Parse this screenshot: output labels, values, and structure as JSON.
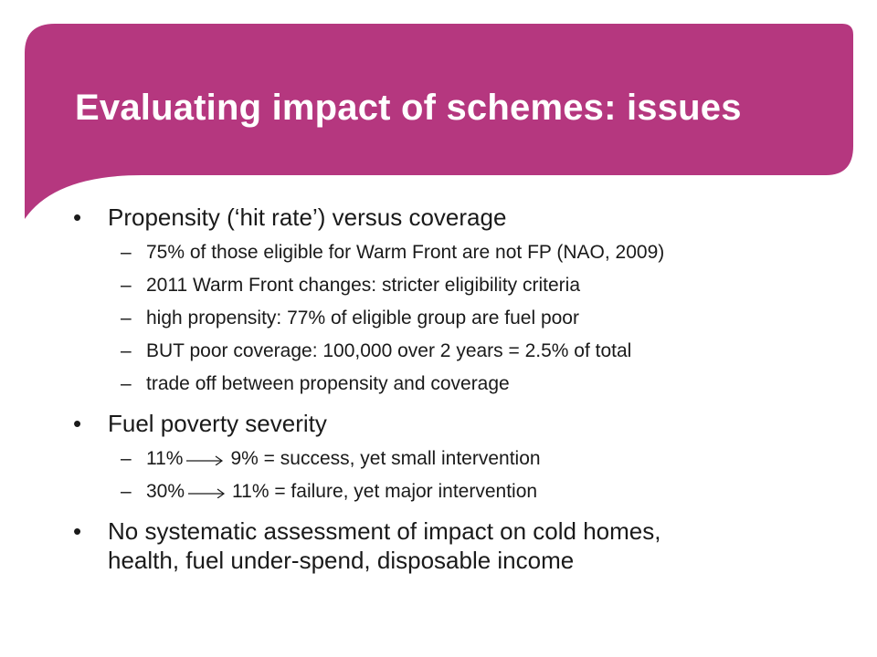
{
  "slide": {
    "accent_color": "#b5377f",
    "title": "Evaluating impact of schemes: issues"
  },
  "bullets": [
    {
      "text": "Propensity (‘hit rate’) versus coverage",
      "subs": [
        "75% of those eligible for Warm Front are not FP (NAO, 2009)",
        "2011 Warm Front changes: stricter eligibility criteria",
        "high propensity: 77% of eligible group are fuel poor",
        "BUT poor coverage: 100,000 over 2 years = 2.5% of total",
        "trade off between propensity and coverage"
      ]
    },
    {
      "text": "Fuel poverty severity",
      "subs": [
        {
          "from": "11%",
          "to_text": "9% = success, yet small intervention"
        },
        {
          "from": "30%",
          "to_text": "11% = failure, yet major intervention"
        }
      ]
    },
    {
      "text_line1": "No systematic assessment of impact on cold homes,",
      "text_line2": "health, fuel under-spend, disposable income"
    }
  ],
  "symbols": {
    "bullet": "•",
    "dash": "–"
  },
  "icons": {
    "arrow": "right-arrow-icon"
  }
}
